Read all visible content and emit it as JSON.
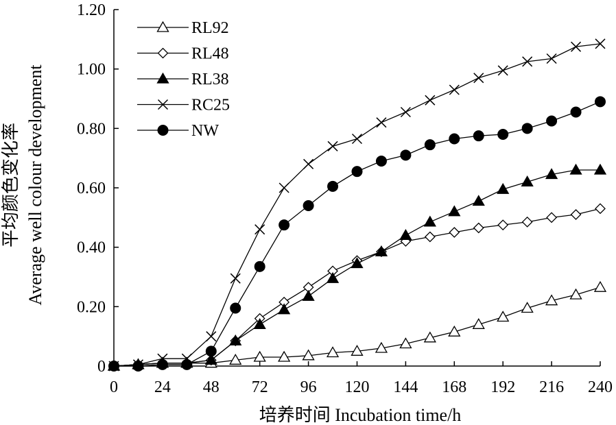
{
  "chart_data": {
    "type": "line",
    "xlabel": "培养时间 Incubation time/h",
    "ylabel_cn": "平均颜色变化率",
    "ylabel_en": "Average well colour development",
    "xlim": [
      0,
      240
    ],
    "ylim": [
      0,
      1.2
    ],
    "x_ticks": [
      "0",
      "24",
      "48",
      "72",
      "96",
      "120",
      "144",
      "168",
      "192",
      "216",
      "240"
    ],
    "y_ticks": [
      "0",
      "0.20",
      "0.40",
      "0.60",
      "0.80",
      "1.00",
      "1.20"
    ],
    "grid": false,
    "legend_position": "top-left",
    "x": [
      0,
      12,
      24,
      36,
      48,
      60,
      72,
      84,
      96,
      108,
      120,
      132,
      144,
      156,
      168,
      180,
      192,
      204,
      216,
      228,
      240
    ],
    "series": [
      {
        "name": "RL92",
        "marker": "triangle-open",
        "values": [
          0.0,
          0.005,
          0.01,
          0.01,
          0.01,
          0.02,
          0.03,
          0.03,
          0.035,
          0.045,
          0.05,
          0.06,
          0.075,
          0.095,
          0.115,
          0.14,
          0.165,
          0.195,
          0.22,
          0.24,
          0.265
        ]
      },
      {
        "name": "RL48",
        "marker": "diamond-open",
        "values": [
          0.0,
          0.005,
          0.01,
          0.01,
          0.02,
          0.085,
          0.16,
          0.215,
          0.265,
          0.32,
          0.355,
          0.385,
          0.42,
          0.435,
          0.45,
          0.465,
          0.475,
          0.485,
          0.5,
          0.51,
          0.53
        ]
      },
      {
        "name": "RL38",
        "marker": "triangle-filled",
        "values": [
          0.0,
          0.005,
          0.01,
          0.01,
          0.02,
          0.085,
          0.14,
          0.19,
          0.235,
          0.295,
          0.345,
          0.385,
          0.44,
          0.485,
          0.52,
          0.555,
          0.595,
          0.62,
          0.645,
          0.66,
          0.66
        ]
      },
      {
        "name": "RC25",
        "marker": "cross",
        "values": [
          0.0,
          0.005,
          0.025,
          0.025,
          0.1,
          0.295,
          0.46,
          0.6,
          0.68,
          0.74,
          0.765,
          0.82,
          0.855,
          0.895,
          0.93,
          0.97,
          0.995,
          1.025,
          1.035,
          1.075,
          1.085
        ]
      },
      {
        "name": "NW",
        "marker": "circle-filled",
        "values": [
          0.0,
          0.0,
          0.005,
          0.005,
          0.05,
          0.195,
          0.335,
          0.475,
          0.54,
          0.605,
          0.655,
          0.69,
          0.71,
          0.745,
          0.765,
          0.775,
          0.78,
          0.8,
          0.825,
          0.855,
          0.89
        ]
      }
    ]
  }
}
